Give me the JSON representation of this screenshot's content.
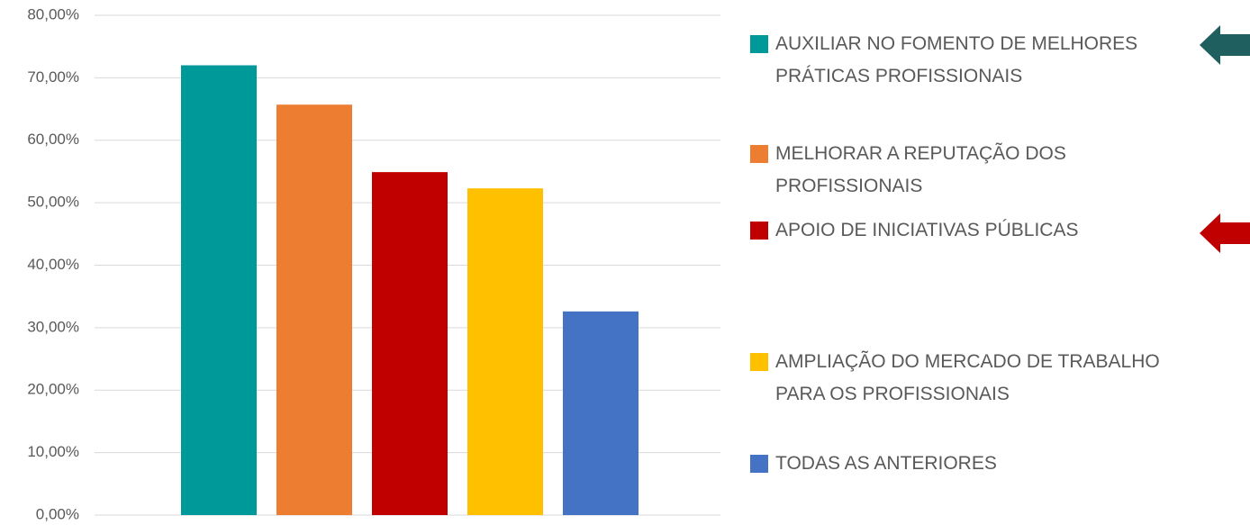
{
  "chart_data": {
    "type": "bar",
    "series": [
      {
        "name": "AUXILIAR NO FOMENTO DE MELHORES PRÁTICAS PROFISSIONAIS",
        "color": "#009999",
        "values": [
          72.0
        ]
      },
      {
        "name": "MELHORAR A REPUTAÇÃO DOS PROFISSIONAIS",
        "color": "#ed7d31",
        "values": [
          65.7
        ]
      },
      {
        "name": "APOIO DE INICIATIVAS PÚBLICAS",
        "color": "#c00000",
        "values": [
          54.9
        ]
      },
      {
        "name": "AMPLIAÇÃO DO MERCADO DE TRABALHO PARA OS PROFISSIONAIS",
        "color": "#ffc000",
        "values": [
          52.3
        ]
      },
      {
        "name": "TODAS AS ANTERIORES",
        "color": "#4472c4",
        "values": [
          32.6
        ]
      }
    ],
    "ylim": [
      0,
      80
    ],
    "yticks": [
      {
        "value": 0,
        "label": "0,00%"
      },
      {
        "value": 10,
        "label": "10,00%"
      },
      {
        "value": 20,
        "label": "20,00%"
      },
      {
        "value": 30,
        "label": "30,00%"
      },
      {
        "value": 40,
        "label": "40,00%"
      },
      {
        "value": 50,
        "label": "50,00%"
      },
      {
        "value": 60,
        "label": "60,00%"
      },
      {
        "value": 70,
        "label": "70,00%"
      },
      {
        "value": 80,
        "label": "80,00%"
      }
    ],
    "grid": true,
    "legend": "right"
  }
}
